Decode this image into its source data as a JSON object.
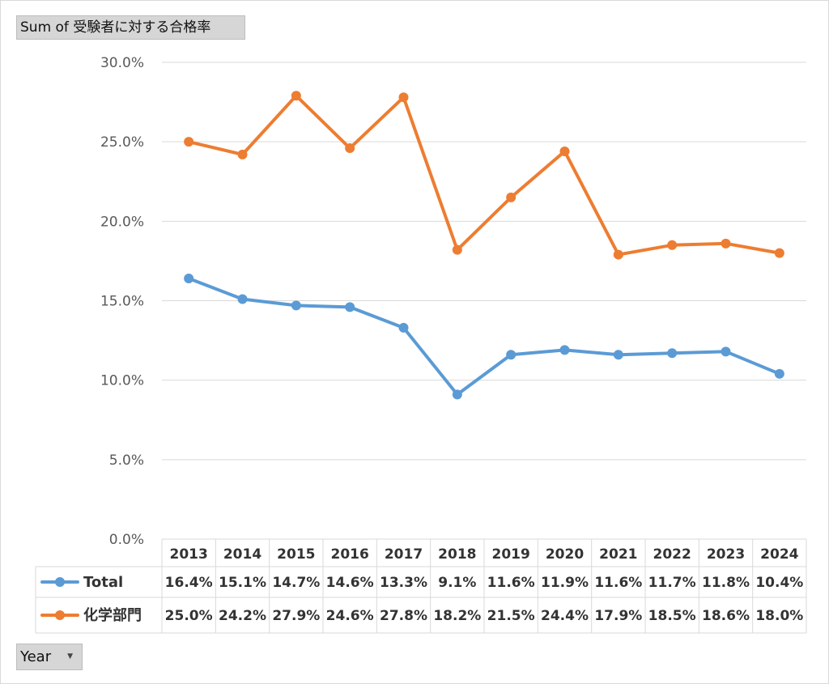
{
  "field_button": {
    "label": "Sum of 受験者に対する合格率"
  },
  "year_button": {
    "label": "Year"
  },
  "chart_data": {
    "type": "line",
    "categories": [
      "2013",
      "2014",
      "2015",
      "2016",
      "2017",
      "2018",
      "2019",
      "2020",
      "2021",
      "2022",
      "2023",
      "2024"
    ],
    "series": [
      {
        "name": "Total",
        "color": "#5b9bd5",
        "values": [
          16.4,
          15.1,
          14.7,
          14.6,
          13.3,
          9.1,
          11.6,
          11.9,
          11.6,
          11.7,
          11.8,
          10.4
        ],
        "labels": [
          "16.4%",
          "15.1%",
          "14.7%",
          "14.6%",
          "13.3%",
          "9.1%",
          "11.6%",
          "11.9%",
          "11.6%",
          "11.7%",
          "11.8%",
          "10.4%"
        ]
      },
      {
        "name": "化学部門",
        "color": "#ed7d31",
        "values": [
          25.0,
          24.2,
          27.9,
          24.6,
          27.8,
          18.2,
          21.5,
          24.4,
          17.9,
          18.5,
          18.6,
          18.0
        ],
        "labels": [
          "25.0%",
          "24.2%",
          "27.9%",
          "24.6%",
          "27.8%",
          "18.2%",
          "21.5%",
          "24.4%",
          "17.9%",
          "18.5%",
          "18.6%",
          "18.0%"
        ]
      }
    ],
    "ylim": [
      0,
      30
    ],
    "yticks": [
      0,
      5,
      10,
      15,
      20,
      25,
      30
    ],
    "ytick_labels": [
      "0.0%",
      "5.0%",
      "10.0%",
      "15.0%",
      "20.0%",
      "25.0%",
      "30.0%"
    ],
    "grid": true,
    "legend": "data-table"
  }
}
